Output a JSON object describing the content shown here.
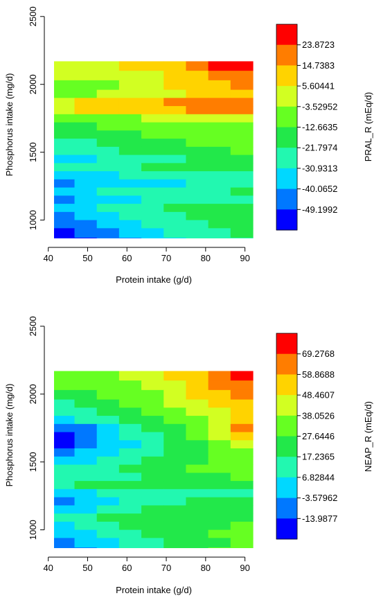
{
  "chart_data": [
    {
      "type": "heatmap",
      "subtype": "filled-contour",
      "xlabel": "Protein intake (g/d)",
      "ylabel": "Phosphorus intake (mg/d)",
      "colorbar_label": "PRAL_R (mEq/d)",
      "x_ticks": [
        "40",
        "50",
        "60",
        "70",
        "80",
        "90"
      ],
      "y_ticks": [
        "1000",
        "1500",
        "2000",
        "2500"
      ],
      "xlim": [
        39,
        95
      ],
      "ylim": [
        850,
        2550
      ],
      "data_x_range": [
        41,
        92
      ],
      "data_y_range": [
        870,
        2170
      ],
      "colorbar_levels": [
        "23.8723",
        "14.7383",
        "5.60441",
        "-3.52952",
        "-12.6635",
        "-21.7974",
        "-30.9313",
        "-40.0652",
        "-49.1992"
      ],
      "colors": [
        "#ff0000",
        "#ff7d00",
        "#ffd300",
        "#d2ff22",
        "#66ff22",
        "#22e84a",
        "#22f8b0",
        "#00d8ff",
        "#0078ff",
        "#0000ff"
      ],
      "band_rows": [
        {
          "y": 2170,
          "levels": [
            6,
            6,
            6,
            7,
            7,
            7,
            8,
            9,
            9
          ]
        },
        {
          "y": 2100,
          "levels": [
            6,
            6,
            6,
            6,
            6,
            7,
            7,
            8,
            8
          ]
        },
        {
          "y": 2030,
          "levels": [
            5,
            5,
            5,
            6,
            6,
            7,
            7,
            7,
            8
          ]
        },
        {
          "y": 1960,
          "levels": [
            5,
            5,
            6,
            6,
            6,
            6,
            7,
            7,
            7
          ]
        },
        {
          "y": 1900,
          "levels": [
            6,
            7,
            7,
            7,
            7,
            8,
            8,
            8,
            8
          ]
        },
        {
          "y": 1840,
          "levels": [
            6,
            7,
            7,
            7,
            7,
            7,
            8,
            8,
            8
          ]
        },
        {
          "y": 1780,
          "levels": [
            5,
            5,
            5,
            5,
            6,
            6,
            6,
            6,
            6
          ]
        },
        {
          "y": 1720,
          "levels": [
            4,
            4,
            5,
            5,
            5,
            5,
            5,
            5,
            5
          ]
        },
        {
          "y": 1660,
          "levels": [
            4,
            4,
            4,
            4,
            5,
            5,
            5,
            5,
            5
          ]
        },
        {
          "y": 1600,
          "levels": [
            3,
            3,
            4,
            4,
            4,
            4,
            5,
            5,
            5
          ]
        },
        {
          "y": 1540,
          "levels": [
            3,
            3,
            3,
            4,
            4,
            4,
            4,
            4,
            5
          ]
        },
        {
          "y": 1480,
          "levels": [
            2,
            2,
            3,
            3,
            3,
            3,
            4,
            4,
            4
          ]
        },
        {
          "y": 1420,
          "levels": [
            3,
            3,
            3,
            3,
            4,
            4,
            4,
            4,
            4
          ]
        },
        {
          "y": 1360,
          "levels": [
            2,
            2,
            2,
            3,
            3,
            3,
            3,
            3,
            3
          ]
        },
        {
          "y": 1300,
          "levels": [
            1,
            2,
            2,
            2,
            2,
            2,
            3,
            3,
            3
          ]
        },
        {
          "y": 1240,
          "levels": [
            2,
            2,
            3,
            3,
            3,
            3,
            3,
            3,
            4
          ]
        },
        {
          "y": 1180,
          "levels": [
            1,
            2,
            2,
            2,
            3,
            3,
            3,
            3,
            3
          ]
        },
        {
          "y": 1120,
          "levels": [
            2,
            2,
            3,
            3,
            3,
            4,
            4,
            4,
            4
          ]
        },
        {
          "y": 1060,
          "levels": [
            1,
            2,
            2,
            3,
            3,
            3,
            4,
            4,
            4
          ]
        },
        {
          "y": 1000,
          "levels": [
            1,
            1,
            2,
            2,
            3,
            3,
            3,
            4,
            4
          ]
        },
        {
          "y": 940,
          "levels": [
            0,
            1,
            1,
            2,
            2,
            3,
            3,
            3,
            4
          ]
        },
        {
          "y": 870,
          "levels": [
            0,
            0,
            1,
            1,
            2,
            2,
            3,
            3,
            3
          ]
        }
      ]
    },
    {
      "type": "heatmap",
      "subtype": "filled-contour",
      "xlabel": "Protein intake (g/d)",
      "ylabel": "Phosphorus intake (mg/d)",
      "colorbar_label": "NEAP_R (mEq/d)",
      "x_ticks": [
        "40",
        "50",
        "60",
        "70",
        "80",
        "90"
      ],
      "y_ticks": [
        "1000",
        "1500",
        "2000",
        "2500"
      ],
      "xlim": [
        39,
        95
      ],
      "ylim": [
        850,
        2550
      ],
      "data_x_range": [
        41,
        92
      ],
      "data_y_range": [
        870,
        2170
      ],
      "colorbar_levels": [
        "69.2768",
        "58.8688",
        "48.4607",
        "38.0526",
        "27.6446",
        "17.2365",
        "6.82844",
        "-3.57962",
        "-13.9877"
      ],
      "colors": [
        "#ff0000",
        "#ff7d00",
        "#ffd300",
        "#d2ff22",
        "#66ff22",
        "#22e84a",
        "#22f8b0",
        "#00d8ff",
        "#0078ff",
        "#0000ff"
      ],
      "band_rows": [
        {
          "y": 2170,
          "levels": [
            5,
            5,
            5,
            6,
            6,
            7,
            7,
            8,
            9
          ]
        },
        {
          "y": 2100,
          "levels": [
            5,
            5,
            5,
            5,
            6,
            6,
            7,
            8,
            8
          ]
        },
        {
          "y": 2030,
          "levels": [
            4,
            4,
            5,
            5,
            5,
            6,
            7,
            7,
            8
          ]
        },
        {
          "y": 1960,
          "levels": [
            3,
            4,
            4,
            5,
            5,
            6,
            6,
            7,
            7
          ]
        },
        {
          "y": 1900,
          "levels": [
            3,
            3,
            4,
            4,
            5,
            5,
            6,
            6,
            7
          ]
        },
        {
          "y": 1840,
          "levels": [
            2,
            3,
            3,
            4,
            4,
            5,
            5,
            6,
            7
          ]
        },
        {
          "y": 1780,
          "levels": [
            1,
            1,
            2,
            3,
            4,
            4,
            5,
            6,
            8
          ]
        },
        {
          "y": 1720,
          "levels": [
            0,
            1,
            2,
            3,
            3,
            4,
            5,
            6,
            7
          ]
        },
        {
          "y": 1660,
          "levels": [
            0,
            1,
            2,
            2,
            3,
            4,
            4,
            5,
            6
          ]
        },
        {
          "y": 1600,
          "levels": [
            1,
            2,
            2,
            3,
            3,
            4,
            4,
            5,
            5
          ]
        },
        {
          "y": 1540,
          "levels": [
            2,
            2,
            3,
            3,
            4,
            4,
            4,
            5,
            5
          ]
        },
        {
          "y": 1480,
          "levels": [
            3,
            3,
            3,
            4,
            4,
            4,
            5,
            5,
            5
          ]
        },
        {
          "y": 1420,
          "levels": [
            3,
            3,
            3,
            3,
            4,
            4,
            4,
            4,
            5
          ]
        },
        {
          "y": 1360,
          "levels": [
            3,
            4,
            4,
            4,
            4,
            4,
            4,
            4,
            4
          ]
        },
        {
          "y": 1300,
          "levels": [
            2,
            2,
            3,
            3,
            3,
            3,
            3,
            3,
            3
          ]
        },
        {
          "y": 1240,
          "levels": [
            1,
            2,
            2,
            3,
            3,
            3,
            4,
            4,
            4
          ]
        },
        {
          "y": 1180,
          "levels": [
            2,
            2,
            3,
            3,
            4,
            4,
            4,
            4,
            4
          ]
        },
        {
          "y": 1120,
          "levels": [
            3,
            3,
            4,
            4,
            4,
            4,
            4,
            4,
            4
          ]
        },
        {
          "y": 1060,
          "levels": [
            2,
            3,
            3,
            4,
            4,
            4,
            4,
            4,
            5
          ]
        },
        {
          "y": 1000,
          "levels": [
            2,
            2,
            3,
            3,
            4,
            4,
            4,
            5,
            5
          ]
        },
        {
          "y": 940,
          "levels": [
            1,
            2,
            2,
            3,
            3,
            4,
            4,
            4,
            5
          ]
        },
        {
          "y": 870,
          "levels": [
            1,
            1,
            2,
            3,
            3,
            4,
            4,
            5,
            5
          ]
        }
      ]
    }
  ]
}
